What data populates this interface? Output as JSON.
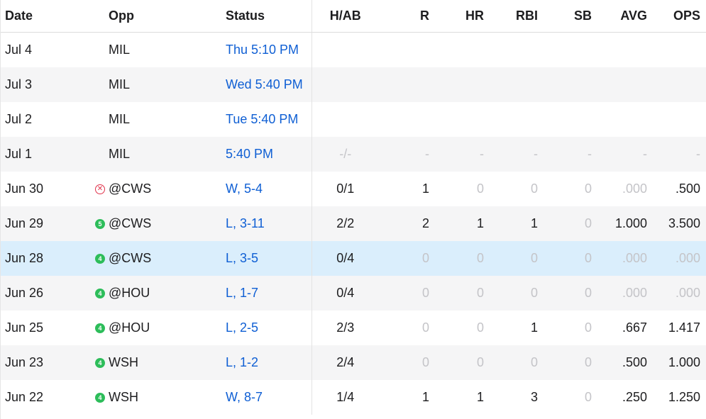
{
  "headers": {
    "date": "Date",
    "opp": "Opp",
    "status": "Status",
    "hab": "H/AB",
    "r": "R",
    "hr": "HR",
    "rbi": "RBI",
    "sb": "SB",
    "avg": "AVG",
    "ops": "OPS"
  },
  "colors": {
    "link": "#0f5fd4",
    "muted": "#c4c4c8",
    "highlight": "#daeefc",
    "stripe": "#f5f5f6",
    "rating_green": "#2dbd5a",
    "alert_red": "#e0324a"
  },
  "rows": [
    {
      "date": "Jul 4",
      "opp": "MIL",
      "icon": "",
      "icon_text": "",
      "status": "Thu 5:10 PM",
      "hab": "",
      "r": "",
      "hr": "",
      "rbi": "",
      "sb": "",
      "avg": "",
      "ops": "",
      "muted": [],
      "highlight": false
    },
    {
      "date": "Jul 3",
      "opp": "MIL",
      "icon": "",
      "icon_text": "",
      "status": "Wed 5:40 PM",
      "hab": "",
      "r": "",
      "hr": "",
      "rbi": "",
      "sb": "",
      "avg": "",
      "ops": "",
      "muted": [],
      "highlight": false
    },
    {
      "date": "Jul 2",
      "opp": "MIL",
      "icon": "",
      "icon_text": "",
      "status": "Tue 5:40 PM",
      "hab": "",
      "r": "",
      "hr": "",
      "rbi": "",
      "sb": "",
      "avg": "",
      "ops": "",
      "muted": [],
      "highlight": false
    },
    {
      "date": "Jul 1",
      "opp": "MIL",
      "icon": "",
      "icon_text": "",
      "status": "5:40 PM",
      "hab": "-/-",
      "r": "-",
      "hr": "-",
      "rbi": "-",
      "sb": "-",
      "avg": "-",
      "ops": "-",
      "muted": [
        "hab",
        "r",
        "hr",
        "rbi",
        "sb",
        "avg",
        "ops"
      ],
      "highlight": false
    },
    {
      "date": "Jun 30",
      "opp": "@CWS",
      "icon": "alert-icon",
      "icon_text": "✕",
      "status": "W, 5-4",
      "hab": "0/1",
      "r": "1",
      "hr": "0",
      "rbi": "0",
      "sb": "0",
      "avg": ".000",
      "ops": ".500",
      "muted": [
        "hr",
        "rbi",
        "sb",
        "avg"
      ],
      "highlight": false
    },
    {
      "date": "Jun 29",
      "opp": "@CWS",
      "icon": "rating-icon",
      "icon_text": "5",
      "status": "L, 3-11",
      "hab": "2/2",
      "r": "2",
      "hr": "1",
      "rbi": "1",
      "sb": "0",
      "avg": "1.000",
      "ops": "3.500",
      "muted": [
        "sb"
      ],
      "highlight": false
    },
    {
      "date": "Jun 28",
      "opp": "@CWS",
      "icon": "rating-icon",
      "icon_text": "4",
      "status": "L, 3-5",
      "hab": "0/4",
      "r": "0",
      "hr": "0",
      "rbi": "0",
      "sb": "0",
      "avg": ".000",
      "ops": ".000",
      "muted": [
        "r",
        "hr",
        "rbi",
        "sb",
        "avg",
        "ops"
      ],
      "highlight": true
    },
    {
      "date": "Jun 26",
      "opp": "@HOU",
      "icon": "rating-icon",
      "icon_text": "4",
      "status": "L, 1-7",
      "hab": "0/4",
      "r": "0",
      "hr": "0",
      "rbi": "0",
      "sb": "0",
      "avg": ".000",
      "ops": ".000",
      "muted": [
        "r",
        "hr",
        "rbi",
        "sb",
        "avg",
        "ops"
      ],
      "highlight": false
    },
    {
      "date": "Jun 25",
      "opp": "@HOU",
      "icon": "rating-icon",
      "icon_text": "4",
      "status": "L, 2-5",
      "hab": "2/3",
      "r": "0",
      "hr": "0",
      "rbi": "1",
      "sb": "0",
      "avg": ".667",
      "ops": "1.417",
      "muted": [
        "r",
        "hr",
        "sb"
      ],
      "highlight": false
    },
    {
      "date": "Jun 23",
      "opp": "WSH",
      "icon": "rating-icon",
      "icon_text": "4",
      "status": "L, 1-2",
      "hab": "2/4",
      "r": "0",
      "hr": "0",
      "rbi": "0",
      "sb": "0",
      "avg": ".500",
      "ops": "1.000",
      "muted": [
        "r",
        "hr",
        "rbi",
        "sb"
      ],
      "highlight": false
    },
    {
      "date": "Jun 22",
      "opp": "WSH",
      "icon": "rating-icon",
      "icon_text": "4",
      "status": "W, 8-7",
      "hab": "1/4",
      "r": "1",
      "hr": "1",
      "rbi": "3",
      "sb": "0",
      "avg": ".250",
      "ops": "1.250",
      "muted": [
        "sb"
      ],
      "highlight": false
    }
  ]
}
